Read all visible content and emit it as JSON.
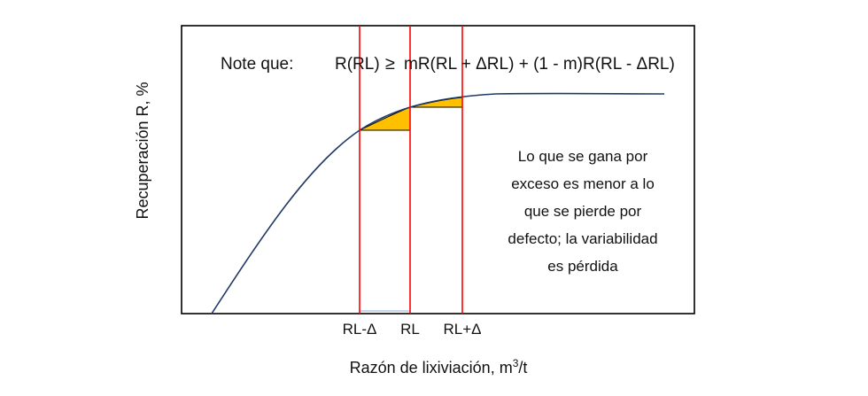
{
  "figure": {
    "y_axis_label": "Recuperación R, %",
    "x_axis_label_base": "Razón de lixiviación, m",
    "x_axis_label_sup": "3",
    "x_axis_label_unit": "/t",
    "formula": {
      "prefix": "Note que:",
      "lhs": "R(RL)",
      "relation": "≥",
      "rhs": "mR(RL + ΔRL) + (1 - m)R(RL - ΔRL)"
    },
    "note_lines": [
      "Lo que se gana por",
      "exceso es menor a lo",
      "que se pierde por",
      "defecto; la variabilidad",
      "es pérdida"
    ],
    "markers": [
      {
        "label": "RL-Δ"
      },
      {
        "label": "RL"
      },
      {
        "label": "RL+Δ"
      }
    ],
    "colors": {
      "curve": "#1f3864",
      "marker_lines": "#ff0000",
      "fill": "#ffc000",
      "frame": "#000000"
    }
  }
}
